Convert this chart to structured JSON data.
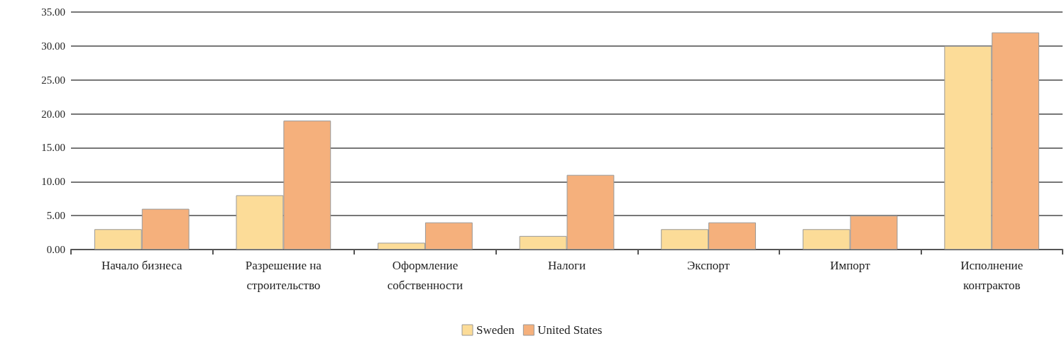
{
  "chart_data": {
    "type": "bar",
    "categories": [
      "Начало бизнеса",
      "Разрешение на\nстроительство",
      "Оформление\nсобственности",
      "Налоги",
      "Экспорт",
      "Импорт",
      "Исполнение\nконтрактов"
    ],
    "series": [
      {
        "name": "Sweden",
        "color": "#fcdc98",
        "values": [
          3,
          8,
          1,
          2,
          3,
          3,
          30
        ]
      },
      {
        "name": "United States",
        "color": "#f5b07c",
        "values": [
          6,
          19,
          4,
          11,
          4,
          5,
          32
        ]
      }
    ],
    "ylim": [
      0,
      35
    ],
    "yticks": [
      {
        "value": 0,
        "label": "0.00"
      },
      {
        "value": 5,
        "label": "5.00"
      },
      {
        "value": 10,
        "label": "10.00"
      },
      {
        "value": 15,
        "label": "15.00"
      },
      {
        "value": 20,
        "label": "20.00"
      },
      {
        "value": 25,
        "label": "25.00"
      },
      {
        "value": 30,
        "label": "30.00"
      },
      {
        "value": 35,
        "label": "35.00"
      }
    ],
    "grid": "y",
    "legend": "bottom"
  }
}
